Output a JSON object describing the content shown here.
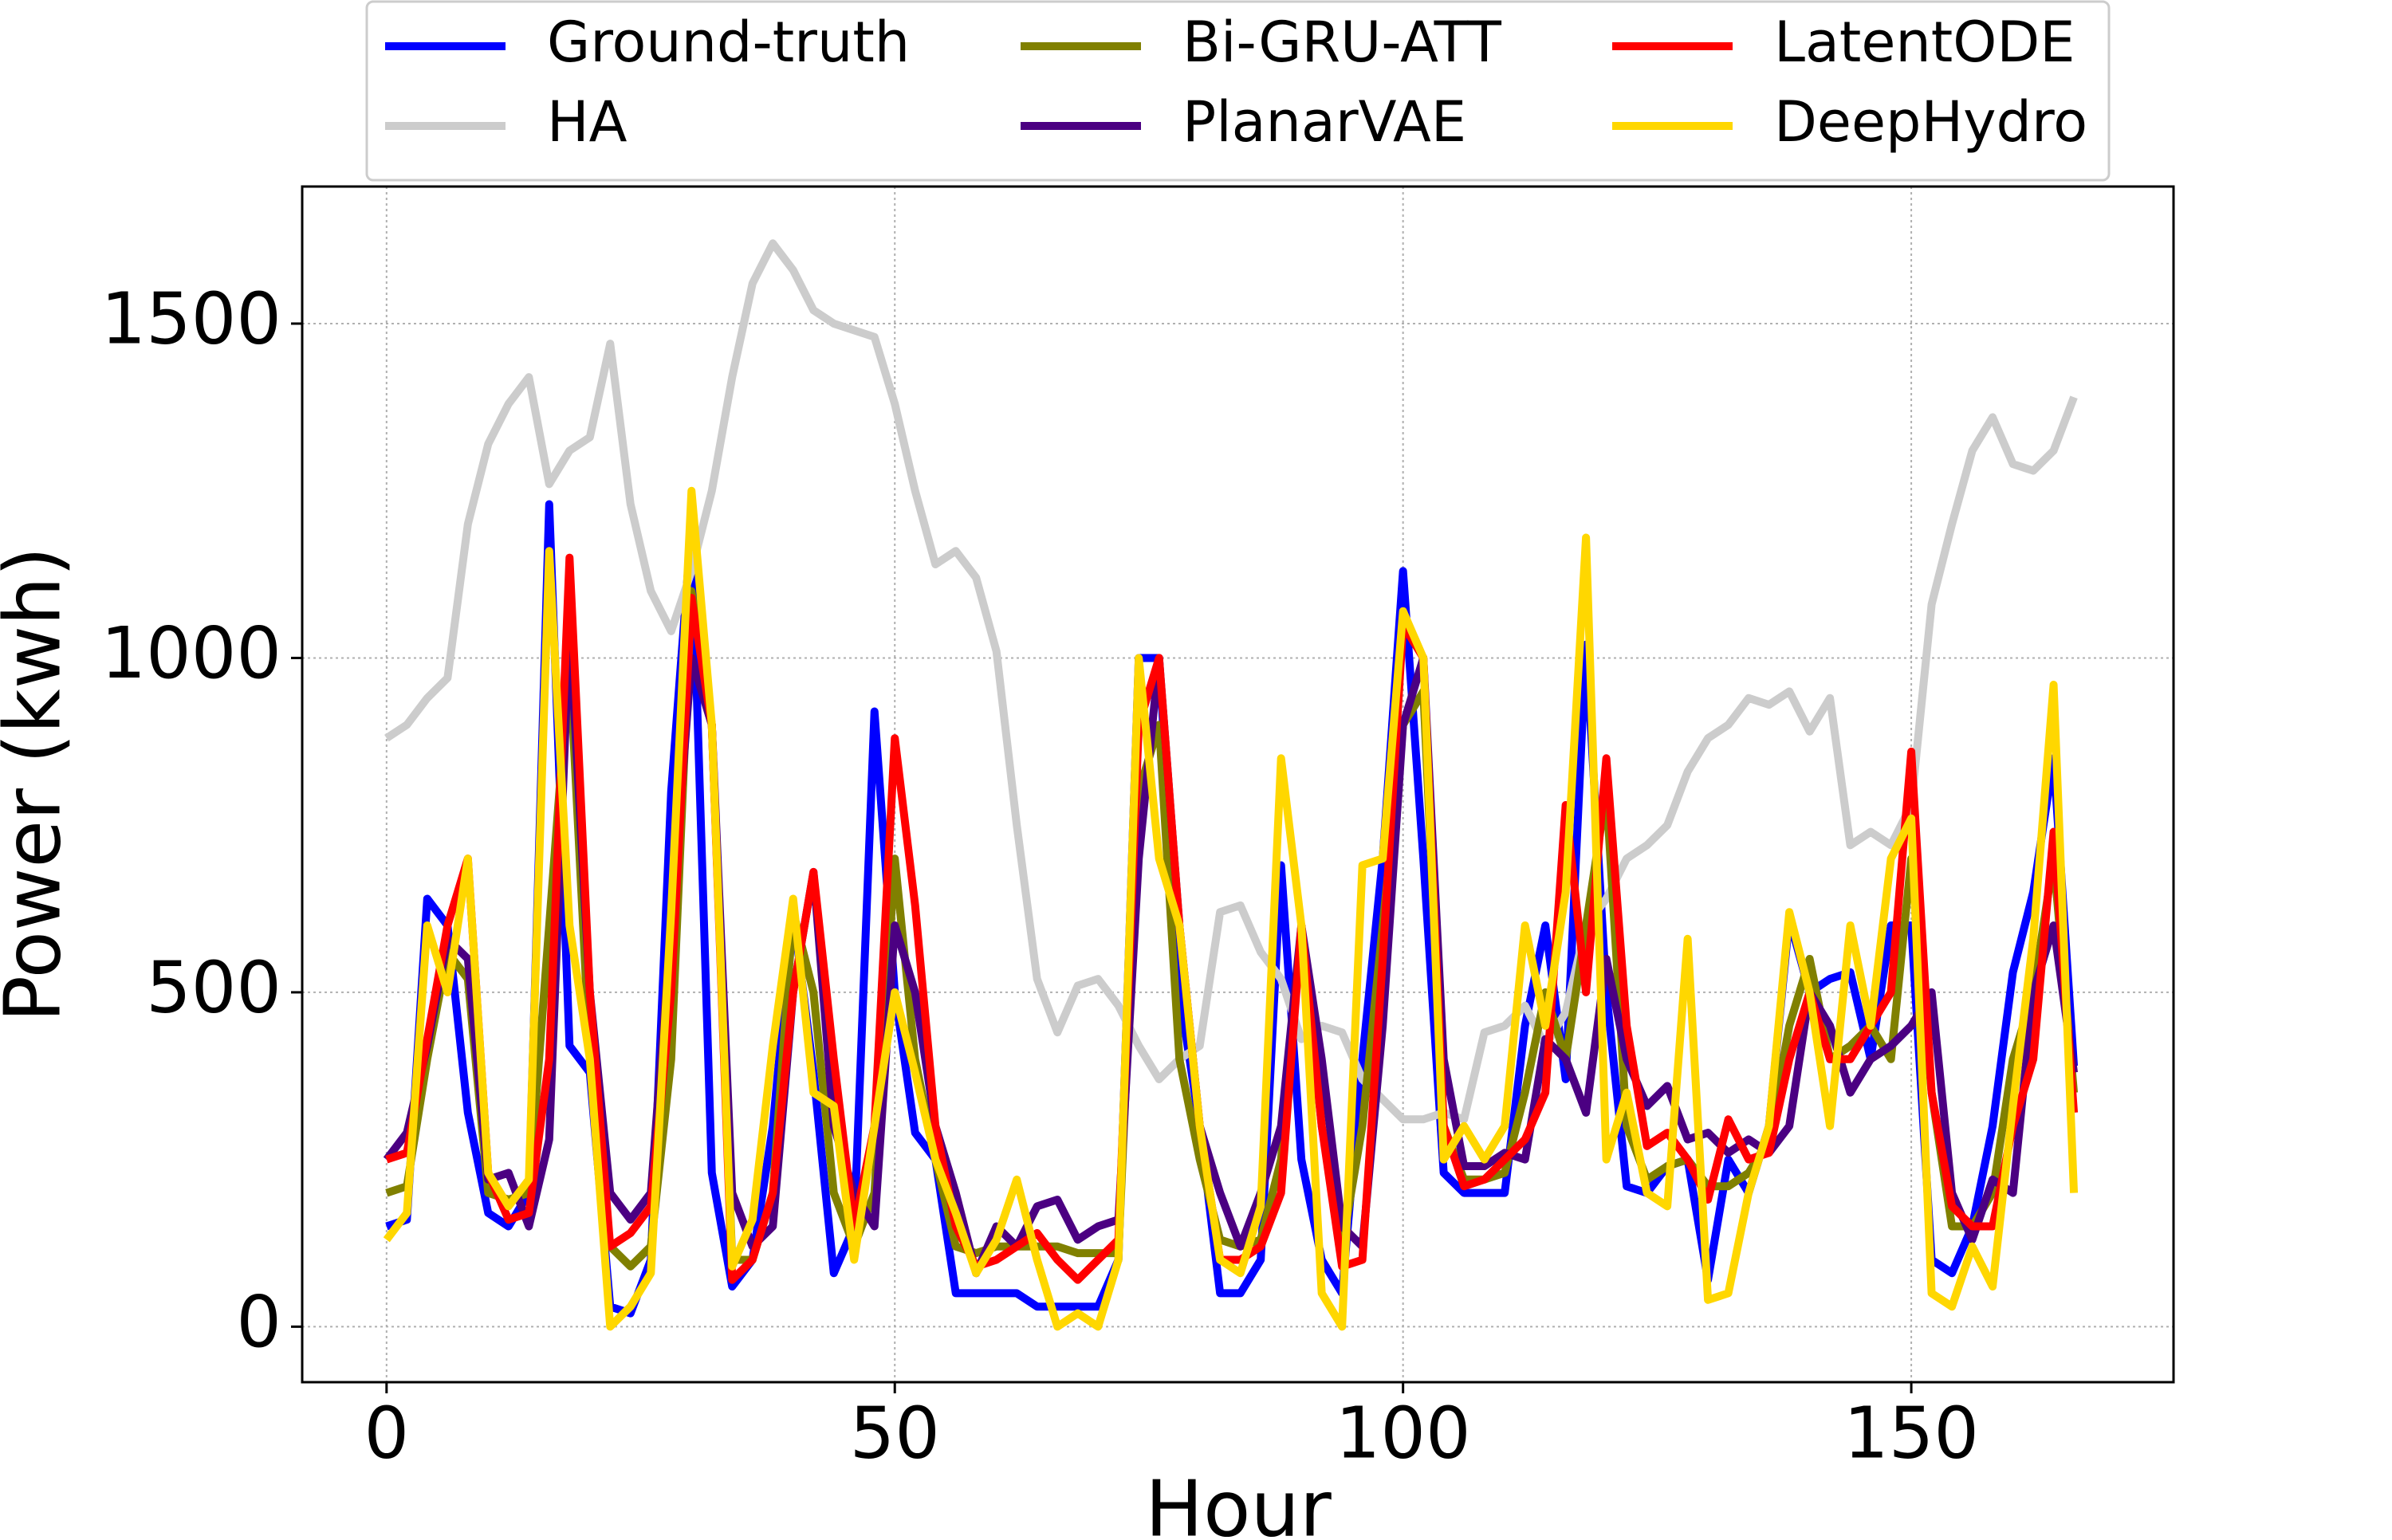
{
  "chart_data": {
    "type": "line",
    "x_label": "Hour",
    "y_label": "Power (kwh)",
    "x": [
      0,
      2,
      4,
      6,
      8,
      10,
      12,
      14,
      16,
      18,
      20,
      22,
      24,
      26,
      28,
      30,
      32,
      34,
      36,
      38,
      40,
      42,
      44,
      46,
      48,
      50,
      52,
      54,
      56,
      58,
      60,
      62,
      64,
      66,
      68,
      70,
      72,
      74,
      76,
      78,
      80,
      82,
      84,
      86,
      88,
      90,
      92,
      94,
      96,
      98,
      100,
      102,
      104,
      106,
      108,
      110,
      112,
      114,
      116,
      118,
      120,
      122,
      124,
      126,
      128,
      130,
      132,
      134,
      136,
      138,
      140,
      142,
      144,
      146,
      148,
      150,
      152,
      154,
      156,
      158,
      160,
      162,
      164,
      166
    ],
    "series": [
      {
        "name": "Ground-truth",
        "color": "#0000ff",
        "values": [
          150,
          160,
          640,
          600,
          320,
          170,
          150,
          200,
          1230,
          420,
          380,
          30,
          20,
          100,
          800,
          1200,
          230,
          60,
          100,
          300,
          620,
          380,
          80,
          150,
          920,
          500,
          290,
          250,
          50,
          50,
          50,
          50,
          30,
          30,
          30,
          30,
          100,
          1000,
          1000,
          500,
          300,
          50,
          50,
          100,
          690,
          250,
          100,
          50,
          400,
          700,
          1130,
          700,
          230,
          200,
          200,
          200,
          450,
          600,
          370,
          1020,
          500,
          210,
          200,
          240,
          250,
          70,
          250,
          200,
          300,
          610,
          500,
          520,
          530,
          400,
          600,
          600,
          100,
          80,
          150,
          300,
          530,
          650,
          850,
          390
        ]
      },
      {
        "name": "HA",
        "color": "#cccccc",
        "values": [
          880,
          900,
          940,
          970,
          1200,
          1320,
          1380,
          1420,
          1260,
          1310,
          1330,
          1470,
          1230,
          1100,
          1040,
          1130,
          1250,
          1420,
          1560,
          1620,
          1580,
          1520,
          1500,
          1490,
          1480,
          1380,
          1250,
          1140,
          1160,
          1120,
          1010,
          750,
          520,
          440,
          510,
          520,
          480,
          420,
          370,
          400,
          420,
          620,
          630,
          560,
          520,
          430,
          450,
          440,
          370,
          340,
          310,
          310,
          320,
          310,
          440,
          450,
          480,
          420,
          470,
          600,
          640,
          700,
          720,
          750,
          830,
          880,
          900,
          940,
          930,
          950,
          890,
          940,
          720,
          740,
          720,
          780,
          1080,
          1200,
          1310,
          1360,
          1290,
          1280,
          1310,
          1390
        ]
      },
      {
        "name": "Bi-GRU-ATT",
        "color": "#808000",
        "values": [
          200,
          210,
          400,
          560,
          520,
          200,
          190,
          200,
          600,
          1000,
          400,
          120,
          90,
          120,
          400,
          1100,
          900,
          100,
          100,
          200,
          620,
          500,
          200,
          120,
          200,
          700,
          400,
          250,
          120,
          110,
          120,
          120,
          120,
          120,
          110,
          110,
          110,
          800,
          900,
          400,
          250,
          130,
          120,
          130,
          250,
          600,
          300,
          120,
          300,
          600,
          900,
          950,
          300,
          220,
          220,
          230,
          350,
          500,
          400,
          600,
          800,
          300,
          220,
          240,
          250,
          210,
          210,
          230,
          280,
          450,
          550,
          400,
          420,
          450,
          400,
          700,
          350,
          150,
          150,
          200,
          400,
          500,
          700,
          350
        ]
      },
      {
        "name": "PlanarVAE",
        "color": "#4b0082",
        "values": [
          250,
          290,
          420,
          580,
          550,
          220,
          230,
          150,
          280,
          1050,
          500,
          200,
          160,
          200,
          600,
          1000,
          900,
          200,
          120,
          150,
          500,
          680,
          300,
          200,
          150,
          600,
          500,
          300,
          200,
          80,
          150,
          120,
          180,
          190,
          130,
          150,
          160,
          700,
          1000,
          600,
          300,
          200,
          120,
          200,
          300,
          600,
          400,
          150,
          120,
          450,
          900,
          1000,
          400,
          240,
          240,
          260,
          250,
          430,
          400,
          320,
          550,
          400,
          330,
          360,
          280,
          290,
          260,
          280,
          260,
          300,
          500,
          450,
          350,
          400,
          420,
          450,
          500,
          200,
          130,
          220,
          200,
          500,
          600,
          380
        ]
      },
      {
        "name": "LatentODE",
        "color": "#ff0000",
        "values": [
          250,
          260,
          430,
          600,
          700,
          230,
          160,
          170,
          400,
          1150,
          500,
          120,
          140,
          180,
          500,
          1090,
          900,
          70,
          100,
          200,
          500,
          680,
          400,
          150,
          300,
          880,
          630,
          300,
          150,
          90,
          100,
          120,
          140,
          100,
          70,
          100,
          130,
          900,
          1000,
          600,
          300,
          100,
          100,
          120,
          200,
          600,
          300,
          90,
          100,
          550,
          1050,
          1000,
          300,
          210,
          220,
          250,
          280,
          350,
          780,
          500,
          850,
          450,
          270,
          290,
          250,
          190,
          310,
          250,
          260,
          400,
          500,
          400,
          400,
          450,
          500,
          860,
          350,
          180,
          150,
          150,
          300,
          400,
          740,
          320
        ]
      },
      {
        "name": "DeepHydro",
        "color": "#ffd700",
        "values": [
          130,
          170,
          600,
          500,
          700,
          230,
          180,
          220,
          1160,
          600,
          400,
          0,
          30,
          80,
          620,
          1250,
          900,
          90,
          160,
          420,
          640,
          350,
          330,
          100,
          300,
          500,
          380,
          250,
          170,
          80,
          130,
          220,
          100,
          0,
          20,
          0,
          100,
          1000,
          700,
          600,
          300,
          100,
          80,
          180,
          850,
          600,
          50,
          0,
          690,
          700,
          1070,
          1000,
          250,
          300,
          250,
          300,
          600,
          450,
          650,
          1180,
          250,
          350,
          200,
          180,
          580,
          40,
          50,
          200,
          300,
          620,
          500,
          300,
          600,
          450,
          700,
          760,
          50,
          30,
          120,
          60,
          330,
          580,
          960,
          200
        ]
      }
    ],
    "xlim": [
      -8.3,
      175.8
    ],
    "ylim": [
      -83,
      1705
    ],
    "xticks": [
      0,
      50,
      100,
      150
    ],
    "yticks": [
      0,
      500,
      1000,
      1500
    ],
    "grid": true,
    "legend": "top"
  }
}
